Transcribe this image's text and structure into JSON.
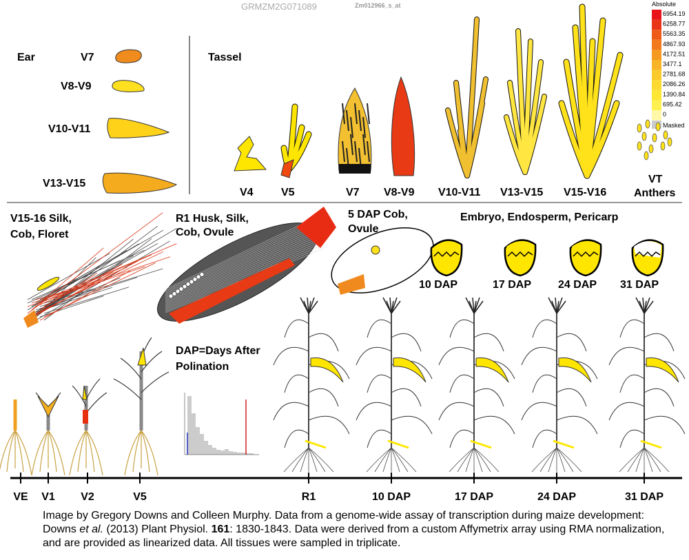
{
  "header": {
    "gene_id": "GRMZM2G071089",
    "probe_id": "Zm012966_s_at"
  },
  "legend": {
    "title": "Absolute",
    "stops": [
      6954.19,
      6258.77,
      5563.35,
      4867.93,
      4172.51,
      3477.1,
      2781.68,
      2086.26,
      1390.84,
      695.42,
      0
    ],
    "masked": "Masked"
  },
  "ear": {
    "title": "Ear",
    "stages": [
      "V7",
      "V8-V9",
      "V10-V11",
      "V13-V15"
    ]
  },
  "tassel": {
    "title": "Tassel",
    "stages": [
      "V4",
      "V5",
      "V7",
      "V8-V9",
      "V10-V11",
      "V13-V15",
      "V15-V16"
    ],
    "anthers": [
      "VT",
      "Anthers"
    ]
  },
  "silk": [
    "V15-16 Silk,",
    "Cob, Floret"
  ],
  "husk": [
    "R1 Husk, Silk,",
    "Cob, Ovule"
  ],
  "cob": [
    "5 DAP Cob,",
    "Ovule"
  ],
  "kernel": {
    "title": "Embryo, Endosperm, Pericarp",
    "stages": [
      "10 DAP",
      "17 DAP",
      "24 DAP",
      "31 DAP"
    ]
  },
  "note": [
    "DAP=Days After",
    "Polination"
  ],
  "timeline": [
    "VE",
    "V1",
    "V2",
    "V5",
    "R1",
    "10 DAP",
    "17 DAP",
    "24 DAP",
    "31 DAP"
  ],
  "caption": [
    "Image by Gregory Downs and Colleen Murphy. Data from a genome-wide assay of transcription during maize development: Downs ",
    "et al.",
    " (2013) Plant Physiol. ",
    "161",
    ": 1830-1843. Data were derived from a custom Affymetrix array using RMA normalization, and are provided as linearized data. All tissues were sampled in triplicate."
  ]
}
